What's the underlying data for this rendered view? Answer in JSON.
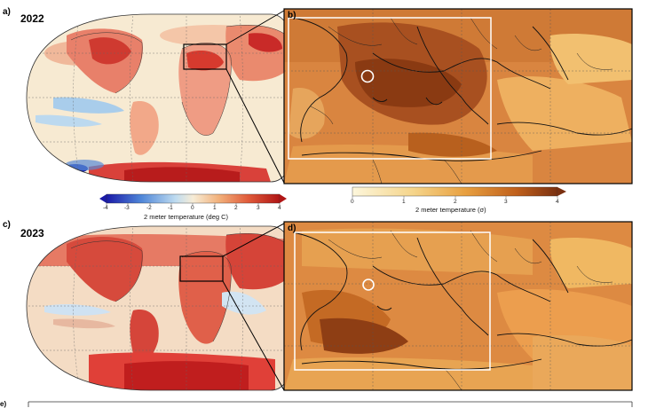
{
  "panels": {
    "a": {
      "letter": "a)",
      "year": "2022"
    },
    "b": {
      "letter": "b)"
    },
    "c": {
      "letter": "c)",
      "year": "2023"
    },
    "d": {
      "letter": "d)"
    },
    "e": {
      "letter": "e)"
    }
  },
  "global_colorbar": {
    "ticks": [
      "-4",
      "-3",
      "-2",
      "-1",
      "0",
      "1",
      "2",
      "3",
      "4"
    ],
    "label": "2 meter temperature (deg C)"
  },
  "regional_colorbar": {
    "ticks": [
      "0",
      "1",
      "2",
      "3",
      "4"
    ],
    "label": "2 meter temperature (σ)"
  },
  "colors": {
    "cold_deep": "#1a1aa8",
    "cold": "#6fa8e0",
    "neutral": "#f7ecd6",
    "warm": "#f0a070",
    "hot": "#c81e1e",
    "sigma_low": "#fdf5d8",
    "sigma_mid": "#e0902a",
    "sigma_high": "#8a3a12",
    "frame_white": "#ffffff"
  }
}
